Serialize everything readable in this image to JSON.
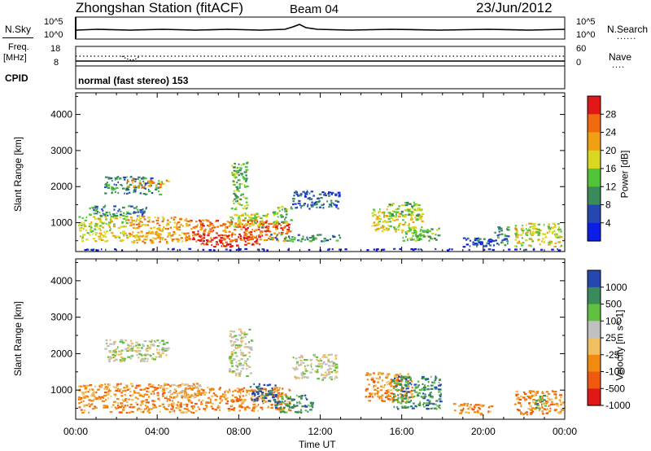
{
  "header": {
    "station": "Zhongshan Station (fitACF)",
    "beam": "Beam 04",
    "date": "23/Jun/2012"
  },
  "noise_panel": {
    "left_label": "N.Sky",
    "left_top": "10^5",
    "left_bottom": "10^0",
    "right_top": "10^5",
    "right_bottom": "10^0",
    "right_label": "N.Search",
    "right_label_line": "......"
  },
  "freq_panel": {
    "left_label_line1": "Freq.",
    "left_label_line2": "[MHz]",
    "left_top": "18",
    "left_bottom": "8",
    "right_top": "60",
    "right_bottom": "0",
    "right_label": "Nave",
    "right_label_line": "...."
  },
  "cpid_panel": {
    "label": "CPID",
    "mode": "normal (fast stereo) 153"
  },
  "colors": {
    "power": [
      "#0a1ee6",
      "#2448b0",
      "#3a8a5a",
      "#52c43a",
      "#d8d820",
      "#f0a010",
      "#f06a10",
      "#e01818"
    ],
    "velocity": [
      "#e01818",
      "#f05a10",
      "#f08a10",
      "#f0c060",
      "#c0c0c0",
      "#60c040",
      "#3a8a5a",
      "#2448b0"
    ]
  },
  "chart_data": [
    {
      "type": "heatmap",
      "parameter": "Power",
      "ylabel": "Slant Range [km]",
      "xlabel": "Time UT",
      "x_ticks": [
        "00:00",
        "04:00",
        "08:00",
        "12:00",
        "16:00",
        "20:00",
        "00:00"
      ],
      "y_ticks": [
        1000,
        2000,
        3000,
        4000
      ],
      "ylim": [
        200,
        4600
      ],
      "xlim_hours": [
        0,
        24
      ],
      "colorbar": {
        "label": "Power [dB]",
        "ticks": [
          "28",
          "24",
          "20",
          "16",
          "12",
          "8",
          "4"
        ]
      },
      "regions": [
        {
          "t0": 0.1,
          "t1": 2.5,
          "r0": 500,
          "r1": 1200,
          "level": 4
        },
        {
          "t0": 0.6,
          "t1": 3.5,
          "r0": 1200,
          "r1": 1500,
          "level": 2
        },
        {
          "t0": 1.4,
          "t1": 4.2,
          "r0": 1800,
          "r1": 2300,
          "level": 2
        },
        {
          "t0": 2.5,
          "t1": 4.5,
          "r0": 2000,
          "r1": 2200,
          "level": 5
        },
        {
          "t0": 2.5,
          "t1": 5.5,
          "r0": 450,
          "r1": 1200,
          "level": 5
        },
        {
          "t0": 5.5,
          "t1": 10.5,
          "r0": 500,
          "r1": 1100,
          "level": 6
        },
        {
          "t0": 6.0,
          "t1": 9.0,
          "r0": 350,
          "r1": 700,
          "level": 7
        },
        {
          "t0": 7.5,
          "t1": 9.5,
          "r0": 900,
          "r1": 1300,
          "level": 4
        },
        {
          "t0": 7.6,
          "t1": 8.4,
          "r0": 1400,
          "r1": 2700,
          "level": 3
        },
        {
          "t0": 9.6,
          "t1": 10.6,
          "r0": 1000,
          "r1": 1500,
          "level": 3
        },
        {
          "t0": 10.6,
          "t1": 12.9,
          "r0": 1400,
          "r1": 1900,
          "level": 1
        },
        {
          "t0": 9.5,
          "t1": 13.0,
          "r0": 500,
          "r1": 700,
          "level": 2
        },
        {
          "t0": 14.5,
          "t1": 17.0,
          "r0": 750,
          "r1": 1400,
          "level": 4
        },
        {
          "t0": 15.2,
          "t1": 16.8,
          "r0": 1200,
          "r1": 1600,
          "level": 3
        },
        {
          "t0": 16.0,
          "t1": 17.8,
          "r0": 500,
          "r1": 900,
          "level": 3
        },
        {
          "t0": 18.5,
          "t1": 20.5,
          "r0": 350,
          "r1": 600,
          "level": 1
        },
        {
          "t0": 20.5,
          "t1": 21.2,
          "r0": 400,
          "r1": 900,
          "level": 2
        },
        {
          "t0": 21.5,
          "t1": 23.8,
          "r0": 350,
          "r1": 1000,
          "level": 4
        },
        {
          "t0": 0.2,
          "t1": 23.9,
          "r0": 260,
          "r1": 300,
          "level": 0
        }
      ]
    },
    {
      "type": "heatmap",
      "parameter": "Velocity",
      "ylabel": "Slant Range [km]",
      "xlabel": "Time UT",
      "x_ticks": [
        "00:00",
        "04:00",
        "08:00",
        "12:00",
        "16:00",
        "20:00",
        "00:00"
      ],
      "y_ticks": [
        1000,
        2000,
        3000,
        4000
      ],
      "ylim": [
        200,
        4600
      ],
      "xlim_hours": [
        0,
        24
      ],
      "colorbar": {
        "label": "Velocity [m s^-1]",
        "ticks": [
          "1000",
          "500",
          "100",
          "25",
          "-25",
          "-100",
          "-500",
          "-1000"
        ]
      },
      "regions": [
        {
          "t0": 0.1,
          "t1": 6.0,
          "r0": 400,
          "r1": 1200,
          "level": 2
        },
        {
          "t0": 6.0,
          "t1": 10.5,
          "r0": 450,
          "r1": 1100,
          "level": 2
        },
        {
          "t0": 4.5,
          "t1": 6.2,
          "r0": 800,
          "r1": 1200,
          "level": 3
        },
        {
          "t0": 1.4,
          "t1": 4.5,
          "r0": 1800,
          "r1": 2400,
          "level": 4
        },
        {
          "t0": 7.5,
          "t1": 8.6,
          "r0": 1400,
          "r1": 2700,
          "level": 4
        },
        {
          "t0": 10.6,
          "t1": 12.8,
          "r0": 1300,
          "r1": 2000,
          "level": 4
        },
        {
          "t0": 8.5,
          "t1": 9.8,
          "r0": 700,
          "r1": 1200,
          "level": 7
        },
        {
          "t0": 9.6,
          "t1": 11.6,
          "r0": 400,
          "r1": 900,
          "level": 6
        },
        {
          "t0": 14.2,
          "t1": 16.5,
          "r0": 700,
          "r1": 1500,
          "level": 2
        },
        {
          "t0": 15.5,
          "t1": 17.9,
          "r0": 500,
          "r1": 1400,
          "level": 6
        },
        {
          "t0": 18.5,
          "t1": 20.5,
          "r0": 350,
          "r1": 650,
          "level": 2
        },
        {
          "t0": 21.5,
          "t1": 23.9,
          "r0": 350,
          "r1": 1000,
          "level": 2
        },
        {
          "t0": 22.5,
          "t1": 23.0,
          "r0": 500,
          "r1": 900,
          "level": 6
        }
      ]
    }
  ]
}
